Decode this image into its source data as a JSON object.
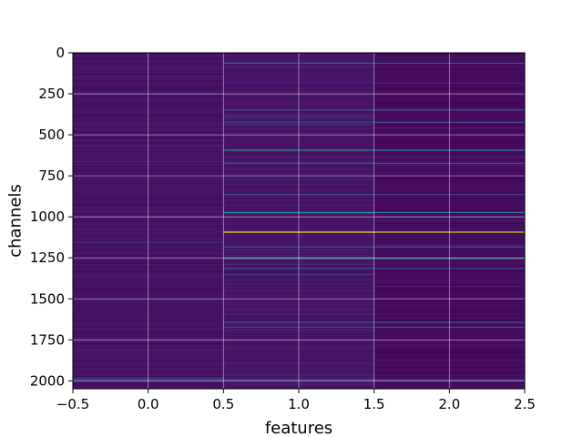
{
  "chart_data": {
    "type": "heatmap",
    "title": "",
    "xlabel": "features",
    "ylabel": "channels",
    "xlim": [
      -0.5,
      2.5
    ],
    "ylim": [
      2048,
      0
    ],
    "y_axis_inverted": true,
    "x_ticks": [
      -0.5,
      0.0,
      0.5,
      1.0,
      1.5,
      2.0,
      2.5
    ],
    "x_tick_labels": [
      "−0.5",
      "0.0",
      "0.5",
      "1.0",
      "1.5",
      "2.0",
      "2.5"
    ],
    "y_ticks": [
      0,
      250,
      500,
      750,
      1000,
      1250,
      1500,
      1750,
      2000
    ],
    "y_tick_labels": [
      "0",
      "250",
      "500",
      "750",
      "1000",
      "1250",
      "1500",
      "1750",
      "2000"
    ],
    "grid": true,
    "colormap": "viridis",
    "columns": [
      0,
      1,
      2
    ],
    "rows": 2048,
    "column_base_level": [
      0.06,
      0.07,
      0.03
    ],
    "notable_rows": [
      {
        "channel": 60,
        "values": [
          0.06,
          0.3,
          0.3
        ]
      },
      {
        "channel": 345,
        "values": [
          0.07,
          0.28,
          0.35
        ]
      },
      {
        "channel": 420,
        "values": [
          0.06,
          0.22,
          0.25
        ]
      },
      {
        "channel": 590,
        "values": [
          0.08,
          0.55,
          0.5
        ]
      },
      {
        "channel": 670,
        "values": [
          0.06,
          0.3,
          0.28
        ]
      },
      {
        "channel": 860,
        "values": [
          0.06,
          0.25,
          0.22
        ]
      },
      {
        "channel": 970,
        "values": [
          0.08,
          0.5,
          0.45
        ]
      },
      {
        "channel": 1090,
        "values": [
          0.1,
          1.0,
          0.92
        ]
      },
      {
        "channel": 1180,
        "values": [
          0.06,
          0.28,
          0.26
        ]
      },
      {
        "channel": 1250,
        "values": [
          0.09,
          0.55,
          0.45
        ]
      },
      {
        "channel": 1310,
        "values": [
          0.06,
          0.25,
          0.22
        ]
      },
      {
        "channel": 1640,
        "values": [
          0.06,
          0.25,
          0.3
        ]
      },
      {
        "channel": 1670,
        "values": [
          0.06,
          0.22,
          0.28
        ]
      },
      {
        "channel": 1990,
        "values": [
          0.3,
          0.3,
          0.3
        ]
      }
    ]
  }
}
